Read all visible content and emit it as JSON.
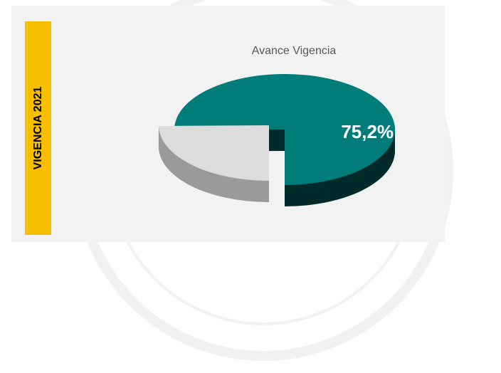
{
  "chart_data": {
    "type": "pie",
    "title": "Avance Vigencia",
    "side_label": "VIGENCIA 2021",
    "values": [
      75.2,
      24.8
    ],
    "value_labels": [
      "75,2%",
      null
    ],
    "colors": [
      "#007c7a",
      "#dcdcdc"
    ]
  }
}
